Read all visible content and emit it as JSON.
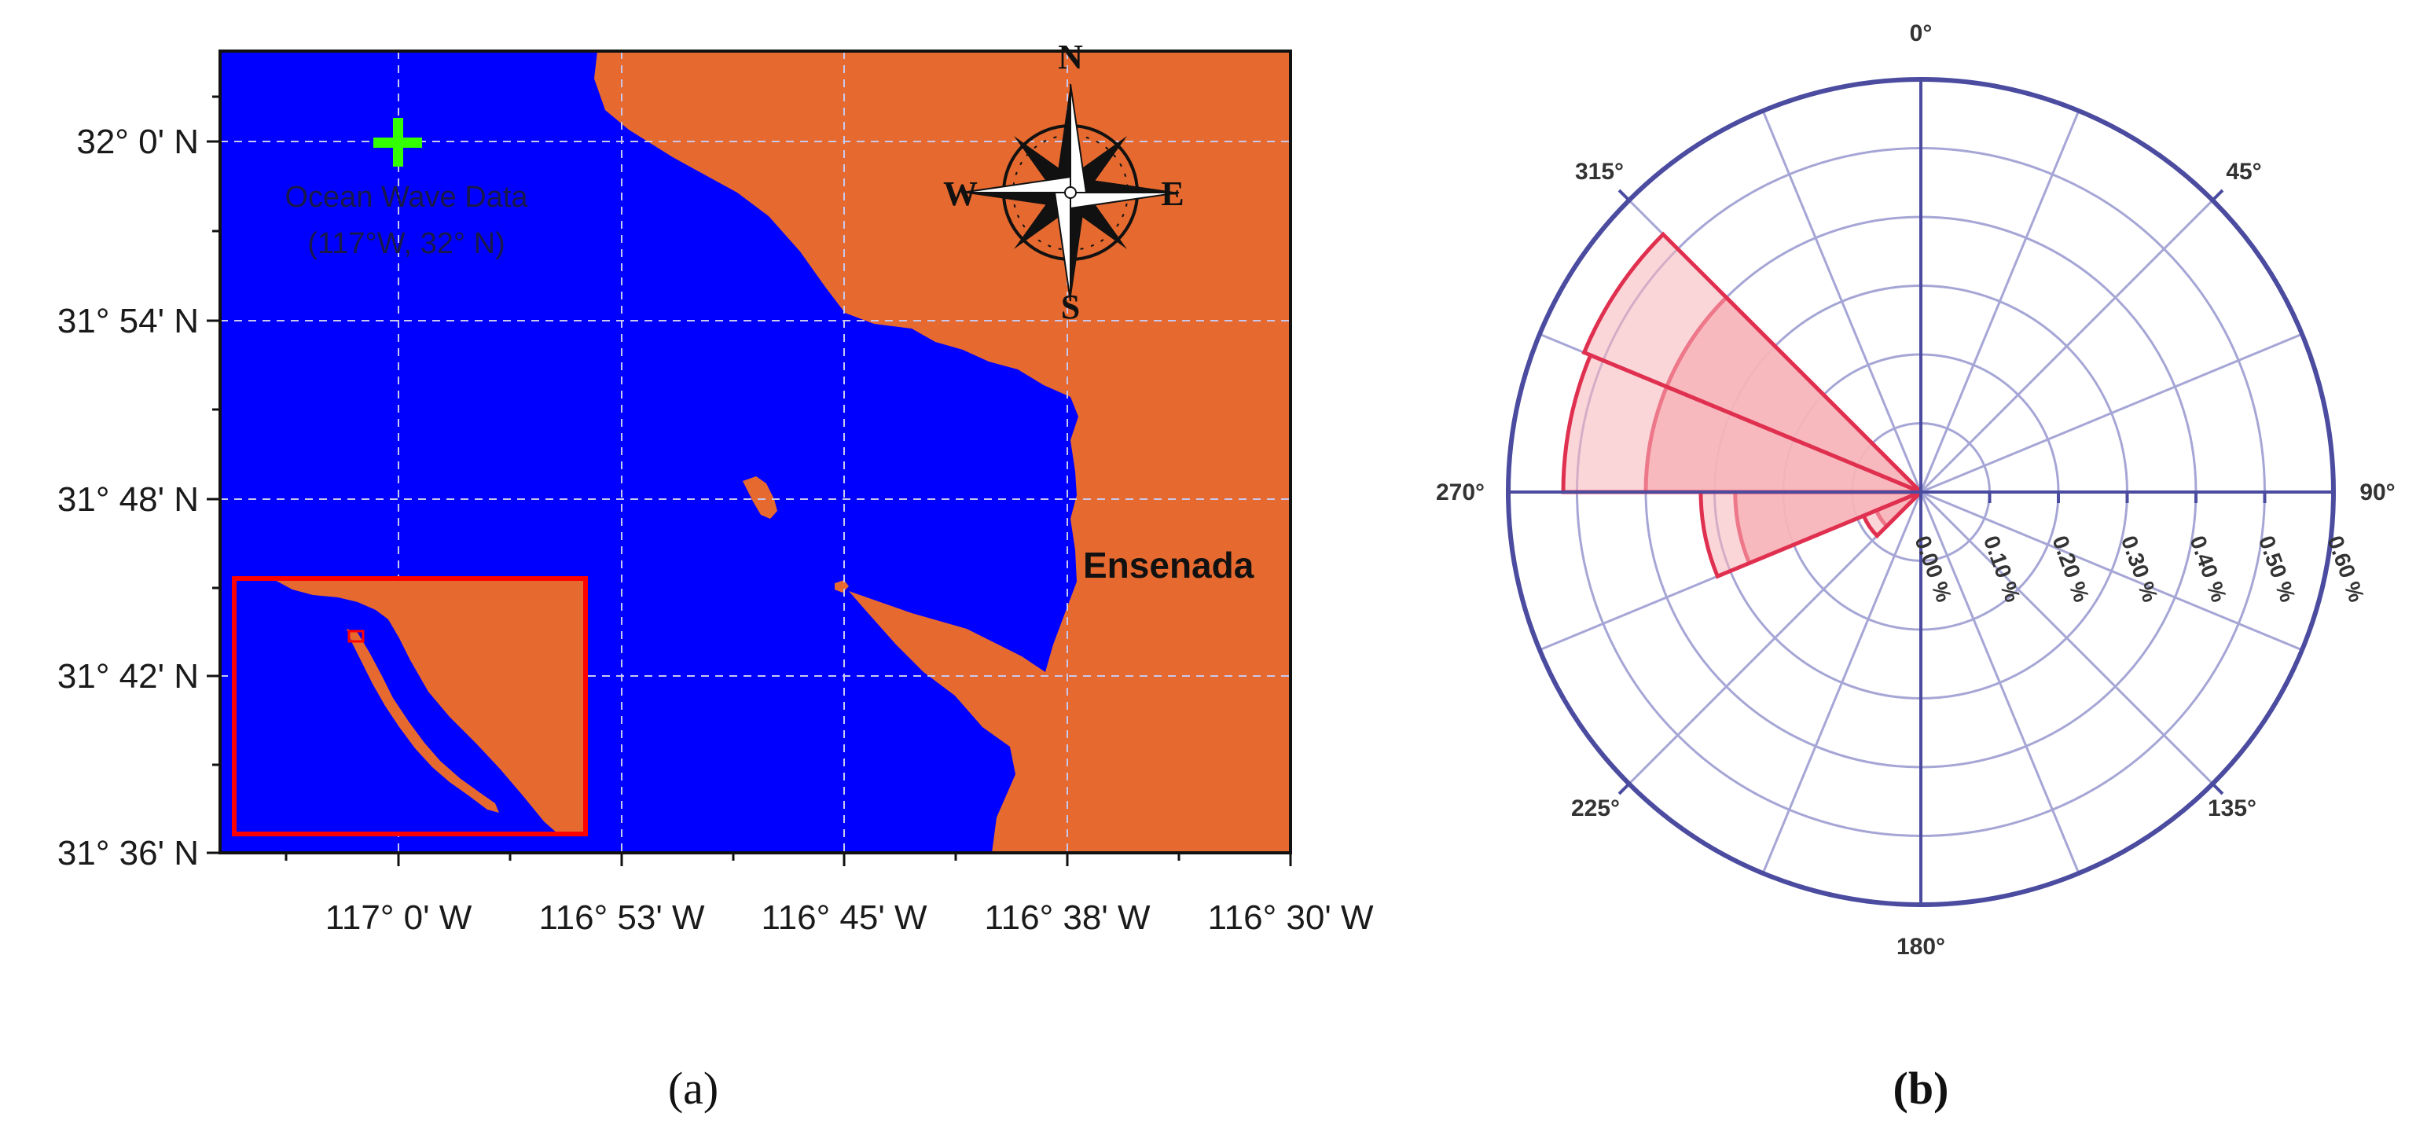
{
  "panel_a": {
    "caption": "(a)",
    "lat_labels": [
      "32° 0' N",
      "31° 54' N",
      "31° 48' N",
      "31° 42' N",
      "31° 36' N"
    ],
    "lon_labels": [
      "117° 0' W",
      "116° 53' W",
      "116° 45' W",
      "116° 38' W",
      "116° 30' W"
    ],
    "station_line1": "Ocean Wave Data",
    "station_line2": "(117°W, 32° N)",
    "city_label": "Ensenada",
    "compass": {
      "n": "N",
      "e": "E",
      "s": "S",
      "w": "W"
    },
    "colors": {
      "ocean": "#0000ff",
      "land": "#e66a30",
      "station_marker": "#33ff00",
      "inset_frame": "#ff0000"
    }
  },
  "panel_b": {
    "caption": "(b)",
    "angle_labels": [
      "0°",
      "45°",
      "90°",
      "135°",
      "180°",
      "225°",
      "270°",
      "315°"
    ],
    "ring_labels": [
      "0.00 %",
      "0.10 %",
      "0.20 %",
      "0.30 %",
      "0.40 %",
      "0.50 %",
      "0.60 %"
    ],
    "colors": {
      "frame": "#4b4ba0",
      "grid": "#a6a6d6",
      "petal_fill": "#f8b4b9",
      "petal_edge": "#e03050"
    },
    "chart_data": {
      "type": "polar-bar",
      "r_unit": "%",
      "r_range": [
        0,
        0.6
      ],
      "direction_labels_deg": [
        0,
        45,
        90,
        135,
        180,
        225,
        270,
        315
      ],
      "sectors": [
        {
          "theta_from": 292.5,
          "theta_to": 315,
          "values": [
            0.4,
            0.53
          ]
        },
        {
          "theta_from": 270,
          "theta_to": 292.5,
          "values": [
            0.4,
            0.52
          ]
        },
        {
          "theta_from": 247.5,
          "theta_to": 270,
          "values": [
            0.27,
            0.32
          ]
        },
        {
          "theta_from": 225,
          "theta_to": 247.5,
          "values": [
            0.07,
            0.09
          ]
        }
      ]
    }
  }
}
